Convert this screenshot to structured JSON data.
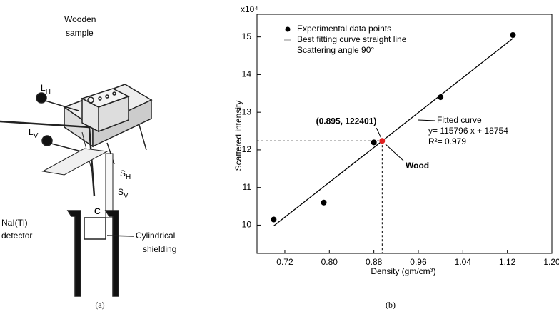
{
  "diagram": {
    "labels": {
      "wooden": "Wooden",
      "sample": "sample",
      "lh": {
        "main": "L",
        "sub": "H"
      },
      "lv": {
        "main": "L",
        "sub": "V"
      },
      "sh": {
        "main": "S",
        "sub": "H"
      },
      "sv": {
        "main": "S",
        "sub": "V"
      },
      "c": "C",
      "nai": "NaI(Tl)",
      "detector": "detector",
      "cyl": "Cylindrical",
      "shielding": "shielding"
    }
  },
  "captions": [
    "(a)",
    "(b)"
  ],
  "chart_data": {
    "type": "scatter",
    "multiplier": "x10⁴",
    "xlabel": "Density (gm/cm³)",
    "ylabel": "Scattered intensity",
    "xlim": [
      0.67,
      1.2
    ],
    "ylim": [
      9.25,
      15.6
    ],
    "xticks": [
      0.72,
      {
        "value": 0.8,
        "label": "0.80"
      },
      0.88,
      0.96,
      1.04,
      1.12,
      {
        "value": 1.2,
        "label": "1.20"
      }
    ],
    "yticks": [
      10,
      11,
      12,
      13,
      14,
      15
    ],
    "series": [
      {
        "name": "Experimental data points",
        "mode": "markers",
        "color": "#000000",
        "x": [
          0.7,
          0.79,
          0.88,
          1.0,
          1.13
        ],
        "values": [
          10.15,
          10.6,
          12.2,
          13.4,
          15.05
        ]
      },
      {
        "name": "Best fitting curve straight line",
        "mode": "line",
        "color": "#000000",
        "x": [
          0.7,
          1.13
        ],
        "values": [
          9.98,
          14.96
        ]
      }
    ],
    "legend_extra": "Scattering angle 90°",
    "highlight": {
      "x": 0.895,
      "y": 12.2401,
      "color": "#e02020",
      "label": "(0.895, 122401)",
      "name": "Wood"
    },
    "fit_annotation": [
      "Fitted curve",
      "y= 115796 x + 18754",
      "R²= 0.979"
    ]
  }
}
